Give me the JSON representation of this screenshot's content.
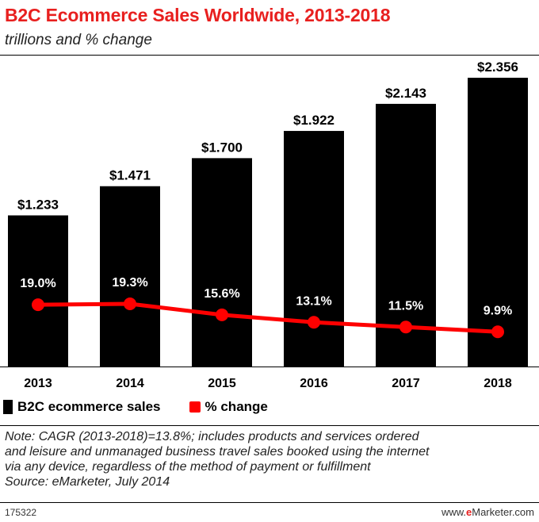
{
  "chart_data": {
    "type": "bar",
    "title": "B2C Ecommerce Sales Worldwide, 2013-2018",
    "subtitle": "trillions and % change",
    "categories": [
      "2013",
      "2014",
      "2015",
      "2016",
      "2017",
      "2018"
    ],
    "series": [
      {
        "name": "B2C ecommerce sales",
        "type": "bar",
        "values": [
          1.233,
          1.471,
          1.7,
          1.922,
          2.143,
          2.356
        ],
        "labels": [
          "$1.233",
          "$1.471",
          "$1.700",
          "$1.922",
          "$2.143",
          "$2.356"
        ],
        "color": "#000000"
      },
      {
        "name": "% change",
        "type": "line",
        "values": [
          19.0,
          19.3,
          15.6,
          13.1,
          11.5,
          9.9
        ],
        "labels": [
          "19.0%",
          "19.3%",
          "15.6%",
          "13.1%",
          "11.5%",
          "9.9%"
        ],
        "color": "#ff0000"
      }
    ],
    "legend": "bottom-left",
    "grid": false
  },
  "note_lines": [
    "Note: CAGR (2013-2018)=13.8%; includes products and services ordered",
    "and leisure and unmanaged business travel sales booked using the internet",
    "via any device, regardless of the method of payment or fulfillment",
    "Source: eMarketer, July 2014"
  ],
  "footer": {
    "id": "175322",
    "brand_prefix": "www.",
    "brand_e": "e",
    "brand_suffix": "Marketer.com"
  },
  "colors": {
    "title": "#e8201f",
    "bar": "#000000",
    "line": "#ff0000"
  }
}
